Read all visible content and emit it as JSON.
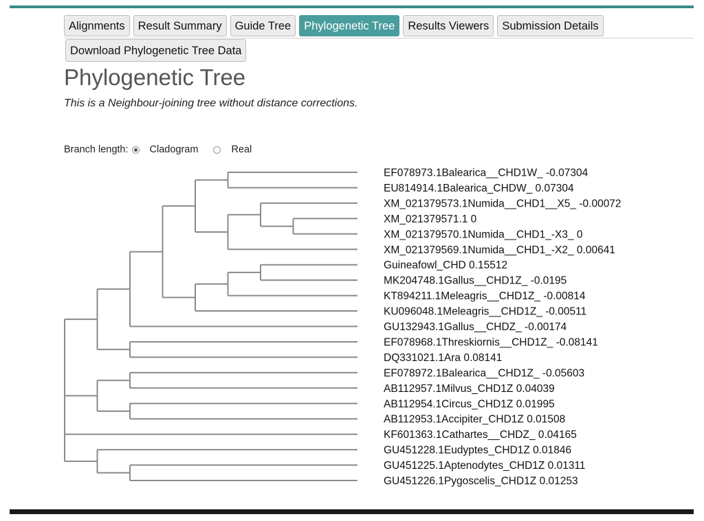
{
  "tabs": [
    {
      "label": "Alignments"
    },
    {
      "label": "Result Summary"
    },
    {
      "label": "Guide Tree"
    },
    {
      "label": "Phylogenetic Tree",
      "active": true
    },
    {
      "label": "Results Viewers"
    },
    {
      "label": "Submission Details"
    }
  ],
  "download_label": "Download Phylogenetic Tree Data",
  "title": "Phylogenetic Tree",
  "subtitle": "This is a Neighbour-joining tree without distance corrections.",
  "branch_length": {
    "label": "Branch length:",
    "options": [
      "Cladogram",
      "Real"
    ],
    "selected": "Cladogram"
  },
  "tree": {
    "leaves": [
      "EF078973.1Balearica__CHD1W_ -0.07304",
      "EU814914.1Balearica_CHDW_ 0.07304",
      "XM_021379573.1Numida__CHD1__X5_ -0.00072",
      "XM_021379571.1 0",
      "XM_021379570.1Numida__CHD1_-X3_ 0",
      "XM_021379569.1Numida__CHD1_-X2_ 0.00641",
      "Guineafowl_CHD 0.15512",
      "MK204748.1Gallus__CHD1Z_ -0.0195",
      "KT894211.1Meleagris__CHD1Z_ -0.00814",
      "KU096048.1Meleagris__CHD1Z_ -0.00511",
      "GU132943.1Gallus__CHDZ_ -0.00174",
      "EF078968.1Threskiornis__CHD1Z_ -0.08141",
      "DQ331021.1Ara 0.08141",
      "EF078972.1Balearica__CHD1Z_ -0.05603",
      "AB112957.1Milvus_CHD1Z 0.04039",
      "AB112954.1Circus_CHD1Z 0.01995",
      "AB112953.1Accipiter_CHD1Z 0.01508",
      "KF601363.1Cathartes__CHDZ_ 0.04165",
      "GU451228.1Eudyptes_CHD1Z 0.01846",
      "GU451225.1Aptenodytes_CHD1Z 0.01311",
      "GU451226.1Pygoscelis_CHD1Z 0.01253"
    ],
    "newick": "((((((0,1),((2,(3,4)),5)),(((6,7),8),9)),10),(11,12)),((13,14),(15,16)),17,(18,(19,20)))"
  },
  "colors": {
    "accent": "#4a9d9d",
    "top_bar": "#3a8a8a",
    "branch": "#8a8a8a"
  }
}
